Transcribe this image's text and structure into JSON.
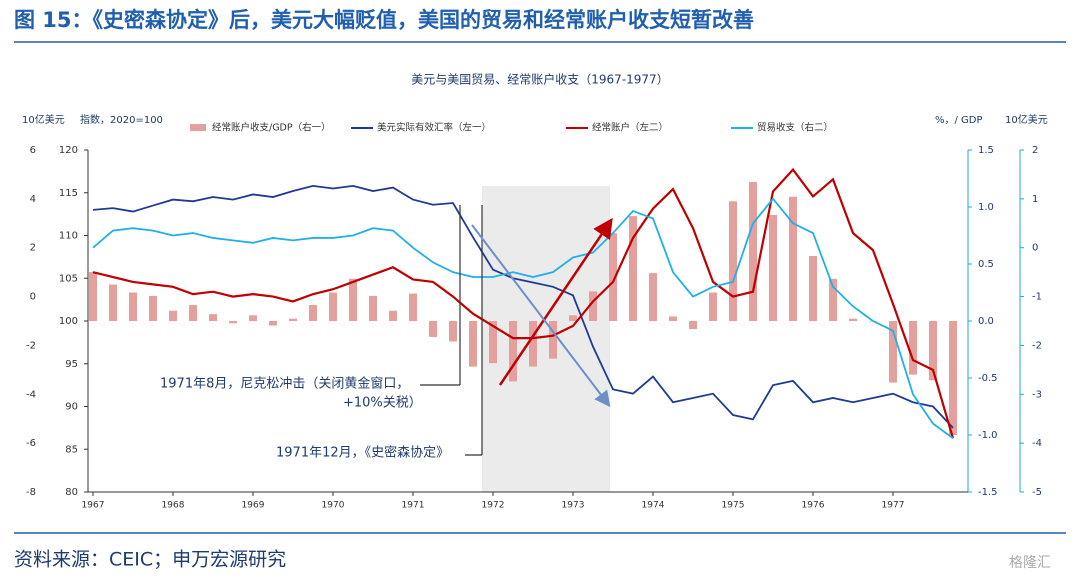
{
  "header": {
    "title": "图 15：《史密森协定》后，美元大幅贬值，美国的贸易和经常账户收支短暂改善"
  },
  "chart_data": {
    "type": "combo",
    "title": "美元与美国贸易、经常账户收支（1967-1977）",
    "categories": [
      "1967",
      null,
      null,
      null,
      "1968",
      null,
      null,
      null,
      "1969",
      null,
      null,
      null,
      "1970",
      null,
      null,
      null,
      "1971",
      null,
      null,
      null,
      "1972",
      null,
      null,
      null,
      "1973",
      null,
      null,
      null,
      "1974",
      null,
      null,
      null,
      "1975",
      null,
      null,
      null,
      "1976",
      null,
      null,
      null,
      "1977",
      null,
      null,
      null
    ],
    "axes": [
      {
        "label": "10亿美元",
        "lim": [
          -8,
          6
        ],
        "ticks": [
          6,
          4,
          2,
          0,
          -2,
          -4,
          -6,
          -8
        ],
        "color": "#333333"
      },
      {
        "label": "指数，2020=100",
        "lim": [
          80,
          120
        ],
        "ticks": [
          120,
          115,
          110,
          105,
          100,
          95,
          90,
          85,
          80
        ],
        "color": "#333333"
      },
      {
        "label": "%，/ GDP",
        "lim": [
          -1.5,
          1.5
        ],
        "ticks": [
          1.5,
          {
            "value": 1,
            "label": "1.0"
          },
          0.5,
          {
            "value": 0,
            "label": "0.0"
          },
          -0.5,
          {
            "value": -1,
            "label": "-1.0"
          },
          -1.5
        ],
        "color": "#1fa8dc"
      },
      {
        "label": "10亿美元",
        "lim": [
          -5,
          2
        ],
        "ticks": [
          2,
          1,
          0,
          -1,
          -2,
          -3,
          -4,
          -5
        ],
        "color": "#1fa8dc"
      }
    ],
    "series": [
      {
        "name": "经常账户收支/GDP（右一）",
        "type": "bar",
        "axis": 2,
        "color": "#e3a09c",
        "values": [
          0.43,
          0.32,
          0.25,
          0.22,
          0.09,
          0.14,
          0.06,
          -0.02,
          0.05,
          -0.04,
          0.02,
          0.14,
          0.25,
          0.37,
          0.22,
          0.09,
          0.24,
          -0.14,
          -0.18,
          -0.4,
          -0.37,
          -0.53,
          -0.4,
          -0.33,
          0.05,
          0.26,
          0.77,
          0.92,
          0.42,
          0.04,
          -0.07,
          0.25,
          1.05,
          1.22,
          0.93,
          1.09,
          0.57,
          0.37,
          0.02,
          0,
          -0.54,
          -0.47,
          -0.52,
          -1.0
        ]
      },
      {
        "name": "美元实际有效汇率（左一）",
        "type": "line",
        "axis": 1,
        "color": "#1f3a93",
        "values": [
          113.0,
          113.2,
          112.8,
          113.5,
          114.2,
          114.0,
          114.5,
          114.2,
          114.8,
          114.5,
          115.2,
          115.8,
          115.5,
          115.8,
          115.2,
          115.6,
          114.2,
          113.6,
          113.8,
          109.8,
          106.0,
          105.0,
          104.5,
          104.0,
          103.0,
          97.0,
          92.0,
          91.5,
          93.5,
          90.5,
          91.0,
          91.5,
          89.0,
          88.5,
          92.5,
          93.0,
          90.5,
          91.0,
          90.5,
          91.0,
          91.5,
          90.5,
          90.0,
          87.5
        ]
      },
      {
        "name": "经常账户（左二）",
        "type": "line",
        "axis": 0,
        "color": "#c00000",
        "values": [
          1.0,
          0.8,
          0.6,
          0.5,
          0.4,
          0.1,
          0.2,
          0.0,
          0.1,
          0.0,
          -0.2,
          0.1,
          0.3,
          0.6,
          0.9,
          1.2,
          0.7,
          0.6,
          0.0,
          -0.7,
          -1.2,
          -1.7,
          -1.7,
          -1.6,
          -1.2,
          -0.2,
          0.6,
          2.4,
          3.6,
          4.4,
          2.8,
          0.6,
          0.0,
          0.2,
          4.3,
          5.2,
          4.1,
          4.8,
          2.6,
          1.9,
          -0.3,
          -2.6,
          -3.0,
          -5.8
        ]
      },
      {
        "name": "贸易收支（右二）",
        "type": "line",
        "axis": 3,
        "color": "#1fb0e8",
        "values": [
          0.0,
          0.35,
          0.4,
          0.35,
          0.25,
          0.3,
          0.2,
          0.15,
          0.1,
          0.2,
          0.15,
          0.2,
          0.2,
          0.25,
          0.4,
          0.35,
          0.0,
          -0.3,
          -0.5,
          -0.6,
          -0.6,
          -0.5,
          -0.6,
          -0.5,
          -0.2,
          -0.1,
          0.3,
          0.75,
          0.6,
          -0.5,
          -1.0,
          -0.8,
          -0.7,
          0.5,
          1.0,
          0.5,
          0.3,
          -0.8,
          -1.2,
          -1.5,
          -1.7,
          -3.0,
          -3.6,
          -3.9
        ]
      }
    ],
    "annotations": [
      "1971年8月，尼克松冲击（关闭黄金窗口，",
      "+10%关税）",
      "1971年12月，《史密森协定》"
    ]
  },
  "footer": {
    "source": "资料来源：CEIC；申万宏源研究",
    "watermark": "格隆汇"
  }
}
